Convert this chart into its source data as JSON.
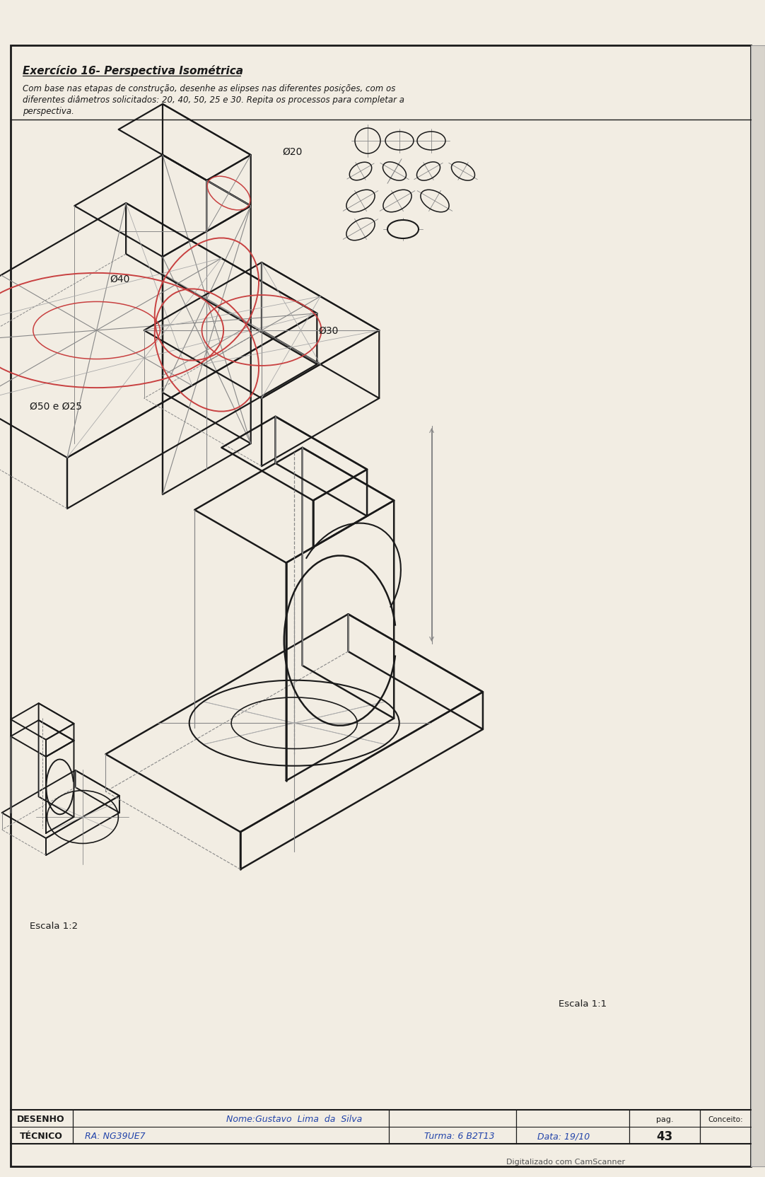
{
  "bg_color": "#f2ede3",
  "line_color": "#1a1a1a",
  "red_color": "#c84040",
  "blue_color": "#2244aa",
  "gray_color": "#888888",
  "light_gray": "#aaaaaa",
  "title": "Exercício 16- Perspectiva Isométrica",
  "subtitle1": "Com base nas etapas de construção, desenhe as elipses nas diferentes posições, com os",
  "subtitle2": "diferentes diâmetros solicitados: 20, 40, 50, 25 e 30. Repita os processos para completar a",
  "subtitle3": "perspectiva.",
  "footer_left1": "DESENHO",
  "footer_left2": "TÉCNICO",
  "footer_name": "Nome:Gustavo  Lima  da  Silva",
  "footer_ra": "RA: NG39UE7",
  "footer_turma": "Turma: 6 B2T13",
  "footer_data": "Data: 19/10",
  "footer_pag_label": "pag.",
  "footer_pag_num": "43",
  "footer_conceito": "Conceito:",
  "escala1": "Escala 1:2",
  "escala2": "Escala 1:1",
  "label_20": "Ø20",
  "label_40": "Ø40",
  "label_30": "Ø30",
  "label_50": "Ø50 e Ø25",
  "digitized": "Digitalizado com CamScanner"
}
